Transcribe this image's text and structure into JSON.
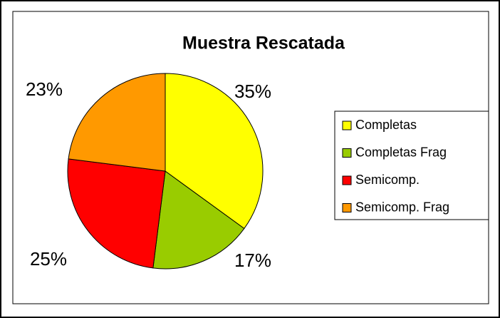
{
  "chart_data": {
    "type": "pie",
    "title": "Muestra Rescatada",
    "categories": [
      "Completas",
      "Completas Frag",
      "Semicomp.",
      "Semicomp. Frag"
    ],
    "values": [
      35,
      17,
      25,
      23
    ],
    "value_labels": [
      "35%",
      "17%",
      "25%",
      "23%"
    ],
    "colors": [
      "#ffff00",
      "#99cc00",
      "#ff0000",
      "#ff9900"
    ],
    "legend": "right"
  }
}
